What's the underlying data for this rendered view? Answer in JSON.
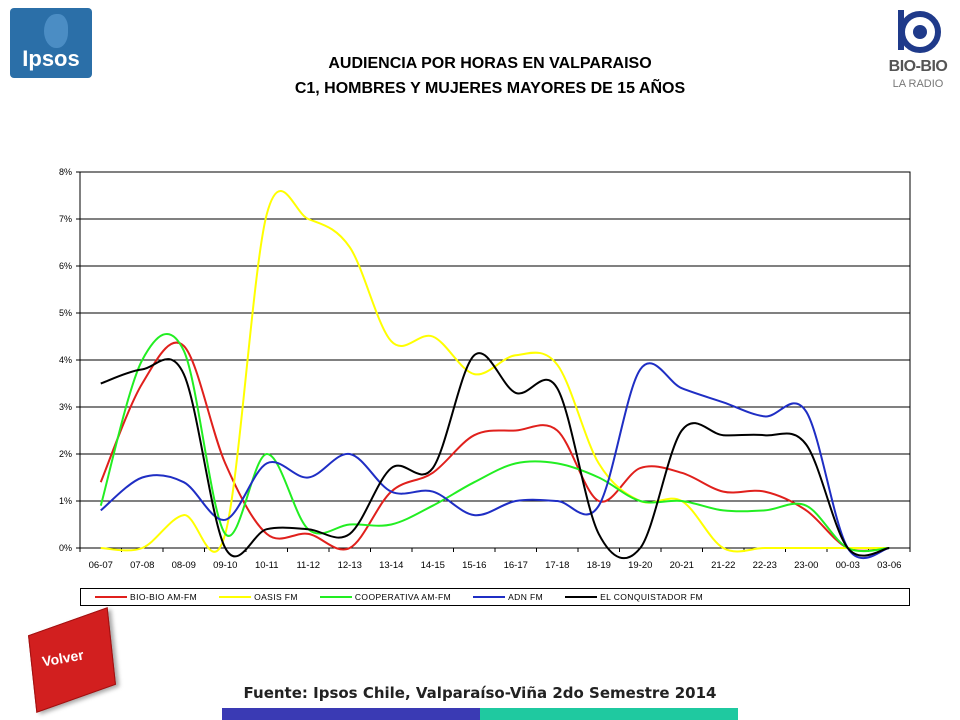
{
  "logos": {
    "ipsos": "Ipsos",
    "biobio": "BIO-BIO",
    "biobio_sub": "LA RADIO"
  },
  "title_line1": "AUDIENCIA POR HORAS EN VALPARAISO",
  "title_line2": "C1, HOMBRES Y MUJERES MAYORES DE 15 AÑOS",
  "back_button": "Volver",
  "source": "Fuente: Ipsos Chile, Valparaíso-Viña 2do Semestre 2014",
  "chart_data": {
    "type": "line",
    "title": "AUDIENCIA POR HORAS EN VALPARAISO",
    "categories": [
      "06-07",
      "07-08",
      "08-09",
      "09-10",
      "10-11",
      "11-12",
      "12-13",
      "13-14",
      "14-15",
      "15-16",
      "16-17",
      "17-18",
      "18-19",
      "19-20",
      "20-21",
      "21-22",
      "22-23",
      "23-00",
      "00-03",
      "03-06"
    ],
    "y_ticks": [
      "0%",
      "1%",
      "2%",
      "3%",
      "4%",
      "5%",
      "6%",
      "7%",
      "8%"
    ],
    "ylim": [
      0,
      8
    ],
    "grid": true,
    "legend_position": "bottom",
    "series": [
      {
        "name": "BIO-BIO AM-FM",
        "color": "#e0201c",
        "values": [
          1.4,
          3.5,
          4.3,
          1.8,
          0.3,
          0.3,
          0.0,
          1.2,
          1.6,
          2.4,
          2.5,
          2.5,
          1.0,
          1.7,
          1.6,
          1.2,
          1.2,
          0.8,
          0.0,
          0.0
        ]
      },
      {
        "name": "OASIS FM",
        "color": "#ffff00",
        "values": [
          0.0,
          0.0,
          0.7,
          0.3,
          7.1,
          7.0,
          6.4,
          4.4,
          4.5,
          3.7,
          4.1,
          3.9,
          1.8,
          1.0,
          1.0,
          0.0,
          0.0,
          0.0,
          0.0,
          0.0
        ]
      },
      {
        "name": "COOPERATIVA AM-FM",
        "color": "#22ee22",
        "values": [
          0.9,
          4.0,
          4.2,
          0.3,
          2.0,
          0.4,
          0.5,
          0.5,
          0.9,
          1.4,
          1.8,
          1.8,
          1.5,
          1.0,
          1.0,
          0.8,
          0.8,
          0.9,
          0.0,
          0.0
        ]
      },
      {
        "name": "ADN FM",
        "color": "#1f2ec4",
        "values": [
          0.8,
          1.5,
          1.4,
          0.6,
          1.8,
          1.5,
          2.0,
          1.2,
          1.2,
          0.7,
          1.0,
          1.0,
          0.9,
          3.8,
          3.4,
          3.1,
          2.8,
          2.9,
          0.0,
          0.0
        ]
      },
      {
        "name": "EL CONQUISTADOR FM",
        "color": "#000000",
        "values": [
          3.5,
          3.8,
          3.7,
          0.0,
          0.4,
          0.4,
          0.3,
          1.7,
          1.7,
          4.1,
          3.3,
          3.4,
          0.3,
          0.0,
          2.5,
          2.4,
          2.4,
          2.2,
          0.0,
          0.0
        ]
      }
    ]
  }
}
